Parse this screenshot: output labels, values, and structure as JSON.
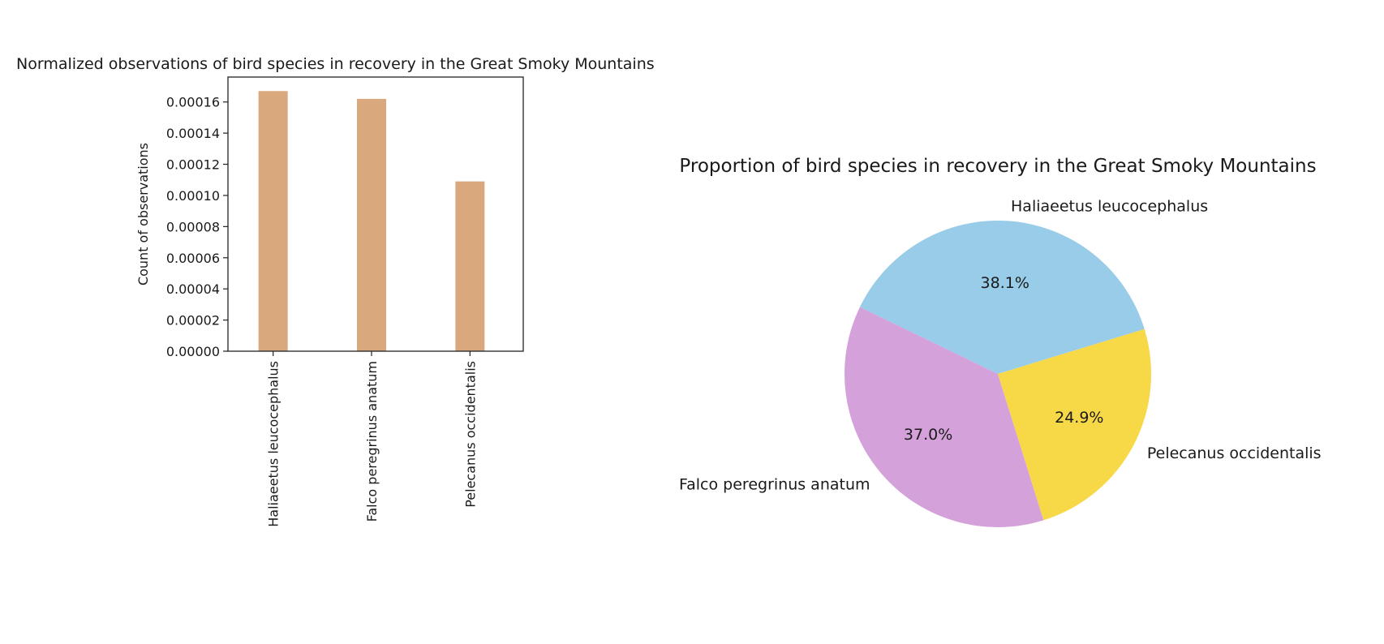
{
  "chart_data": [
    {
      "type": "bar",
      "title": "Normalized observations of bird species in recovery in the Great Smoky Mountains",
      "xlabel": "",
      "ylabel": "Count of observations",
      "categories": [
        "Haliaeetus leucocephalus",
        "Falco peregrinus anatum",
        "Pelecanus occidentalis"
      ],
      "values": [
        0.000167,
        0.000162,
        0.000109
      ],
      "ylim": [
        0,
        0.000176
      ],
      "yticks": [
        "0.00000",
        "0.00002",
        "0.00004",
        "0.00006",
        "0.00008",
        "0.00010",
        "0.00012",
        "0.00014",
        "0.00016"
      ],
      "ytick_values": [
        0,
        2e-05,
        4e-05,
        6e-05,
        8e-05,
        0.0001,
        0.00012,
        0.00014,
        0.00016
      ],
      "bar_color": "#d9a87c",
      "grid": false
    },
    {
      "type": "pie",
      "title": "Proportion of bird species in recovery in the Great Smoky Mountains",
      "labels": [
        "Haliaeetus leucocephalus",
        "Falco peregrinus anatum",
        "Pelecanus occidentalis"
      ],
      "values": [
        38.1,
        37.0,
        24.9
      ],
      "pct_labels": [
        "38.1%",
        "37.0%",
        "24.9%"
      ],
      "colors": [
        "#98cce8",
        "#d4a1da",
        "#f7d948"
      ],
      "start_angle_deg": 17
    }
  ]
}
